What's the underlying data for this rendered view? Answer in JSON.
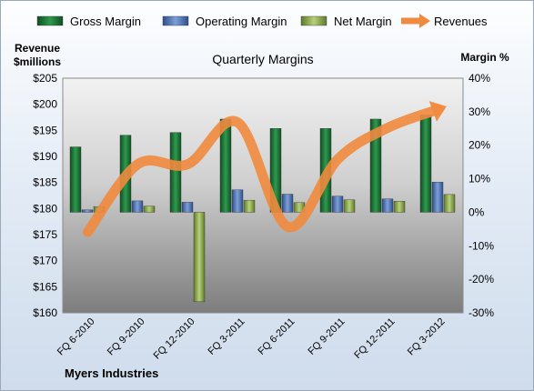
{
  "chart_data": {
    "type": "bar",
    "title": "Quarterly Margins",
    "categories": [
      "FQ 6-2010",
      "FQ 9-2010",
      "FQ 12-2010",
      "FQ 3-2011",
      "FQ 6-2011",
      "FQ 9-2011",
      "FQ 12-2011",
      "FQ 3-2012"
    ],
    "series": [
      {
        "name": "Gross Margin",
        "axis": "right",
        "type": "bar",
        "color": "#1f7a3a",
        "values": [
          19.5,
          23.0,
          23.8,
          27.8,
          25.0,
          25.0,
          27.8,
          29.0
        ]
      },
      {
        "name": "Operating Margin",
        "axis": "right",
        "type": "bar",
        "color": "#4a6fb0",
        "values": [
          0.7,
          3.4,
          3.0,
          6.7,
          5.4,
          4.8,
          4.0,
          9.0
        ]
      },
      {
        "name": "Net Margin",
        "axis": "right",
        "type": "bar",
        "color": "#8fad4c",
        "values": [
          1.7,
          1.8,
          -26.7,
          3.6,
          2.9,
          3.7,
          3.3,
          5.3
        ]
      },
      {
        "name": "Revenues",
        "axis": "left",
        "type": "line",
        "color": "#f08a3e",
        "values": [
          175.5,
          188.5,
          188.5,
          196.5,
          176.5,
          189.5,
          195.5,
          199.0
        ]
      }
    ],
    "left_axis": {
      "label_line1": "Revenue",
      "label_line2": "$millions",
      "min": 160,
      "max": 205,
      "step": 5,
      "tick_format": "${v}"
    },
    "right_axis": {
      "label": "Margin %",
      "min": -30,
      "max": 40,
      "step": 10,
      "tick_format": "{v}%"
    },
    "legend": {
      "position": "top"
    },
    "grid": false
  },
  "footer": {
    "company": "Myers Industries"
  }
}
